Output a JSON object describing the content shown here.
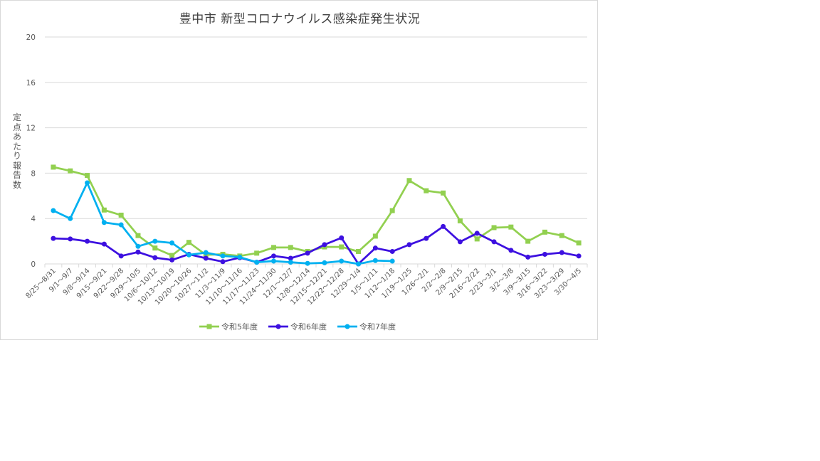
{
  "chart_data": {
    "type": "line",
    "title": "豊中市  新型コロナウイルス感染症発生状況",
    "xlabel": "",
    "ylabel": "定点あたり報告数",
    "ylim": [
      0,
      20
    ],
    "yticks": [
      0,
      4,
      8,
      12,
      16,
      20
    ],
    "grid": true,
    "legend_position": "bottom",
    "categories": [
      "8/25～8/31",
      "9/1～9/7",
      "9/8～9/14",
      "9/15～9/21",
      "9/22～9/28",
      "9/29～10/5",
      "10/6～10/12",
      "10/13～10/19",
      "10/20～10/26",
      "10/27～11/2",
      "11/3～11/9",
      "11/10～11/16",
      "11/17～11/23",
      "11/24～11/30",
      "12/1～12/7",
      "12/8～12/14",
      "12/15～12/21",
      "12/22～12/28",
      "12/29～1/4",
      "1/5～1/11",
      "1/12～1/18",
      "1/19～1/25",
      "1/26～2/1",
      "2/2～2/8",
      "2/9～2/15",
      "2/16～2/22",
      "2/23～3/1",
      "3/2～3/8",
      "3/9～3/15",
      "3/16～3/22",
      "3/23～3/29",
      "3/30～4/5"
    ],
    "series": [
      {
        "name": "令和5年度",
        "color": "#92d050",
        "marker": "square",
        "values": [
          8.53,
          8.2,
          7.8,
          4.75,
          4.3,
          2.5,
          1.4,
          0.75,
          1.9,
          0.8,
          0.85,
          0.7,
          0.95,
          1.45,
          1.45,
          1.1,
          1.5,
          1.5,
          1.1,
          2.45,
          4.7,
          7.35,
          6.45,
          6.25,
          3.8,
          2.2,
          3.2,
          3.25,
          2.0,
          2.8,
          2.5,
          1.85
        ]
      },
      {
        "name": "令和6年度",
        "color": "#3d10e0",
        "marker": "circle",
        "values": [
          2.25,
          2.2,
          2.0,
          1.75,
          0.7,
          1.05,
          0.55,
          0.35,
          0.85,
          0.5,
          0.2,
          0.55,
          0.15,
          0.7,
          0.5,
          0.95,
          1.7,
          2.3,
          0.0,
          1.4,
          1.1,
          1.7,
          2.25,
          3.3,
          1.95,
          2.7,
          1.95,
          1.2,
          0.6,
          0.85,
          1.0,
          0.7
        ]
      },
      {
        "name": "令和7年度",
        "color": "#00b0f0",
        "marker": "circle",
        "values": [
          4.7,
          4.0,
          7.15,
          3.65,
          3.45,
          1.55,
          2.0,
          1.85,
          0.8,
          1.0,
          0.7,
          0.6,
          0.15,
          0.25,
          0.15,
          0.05,
          0.1,
          0.25,
          0.0,
          0.3,
          0.25
        ]
      }
    ]
  },
  "colors": {
    "grid": "#d9d9d9",
    "text": "#595959",
    "title": "#404040",
    "frame": "#d9d9d9"
  }
}
